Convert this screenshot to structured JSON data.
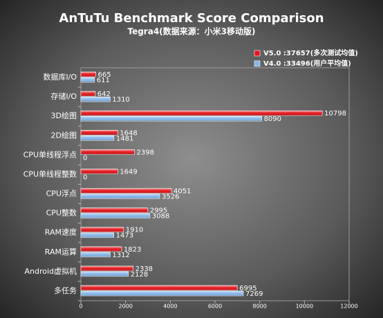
{
  "chart_data": {
    "type": "hbar",
    "title": "AnTuTu Benchmark Score Comparison",
    "subtitle": "Tegra4(数据来源：小米3移动版)",
    "categories": [
      "数据库I/O",
      "存储I/O",
      "3D绘图",
      "2D绘图",
      "CPU单线程浮点",
      "CPU单线程整数",
      "CPU浮点",
      "CPU整数",
      "RAM速度",
      "RAM运算",
      "Android虚拟机",
      "多任务"
    ],
    "series": [
      {
        "name": "V5.0 :37657(多次测试均值)",
        "color": "#e3151b",
        "values": [
          665,
          642,
          10798,
          1648,
          2398,
          1649,
          4051,
          2995,
          1910,
          1823,
          2338,
          6995
        ]
      },
      {
        "name": "V4.0 :33496(用户平均值)",
        "color": "#86b6ea",
        "values": [
          611,
          1310,
          8090,
          1481,
          0,
          0,
          3526,
          3088,
          1473,
          1312,
          2128,
          7269
        ]
      }
    ],
    "xlim": [
      0,
      12000
    ],
    "xticks": [
      0,
      2000,
      4000,
      6000,
      8000,
      10000,
      12000
    ],
    "legend": "top-right",
    "grid": false
  }
}
